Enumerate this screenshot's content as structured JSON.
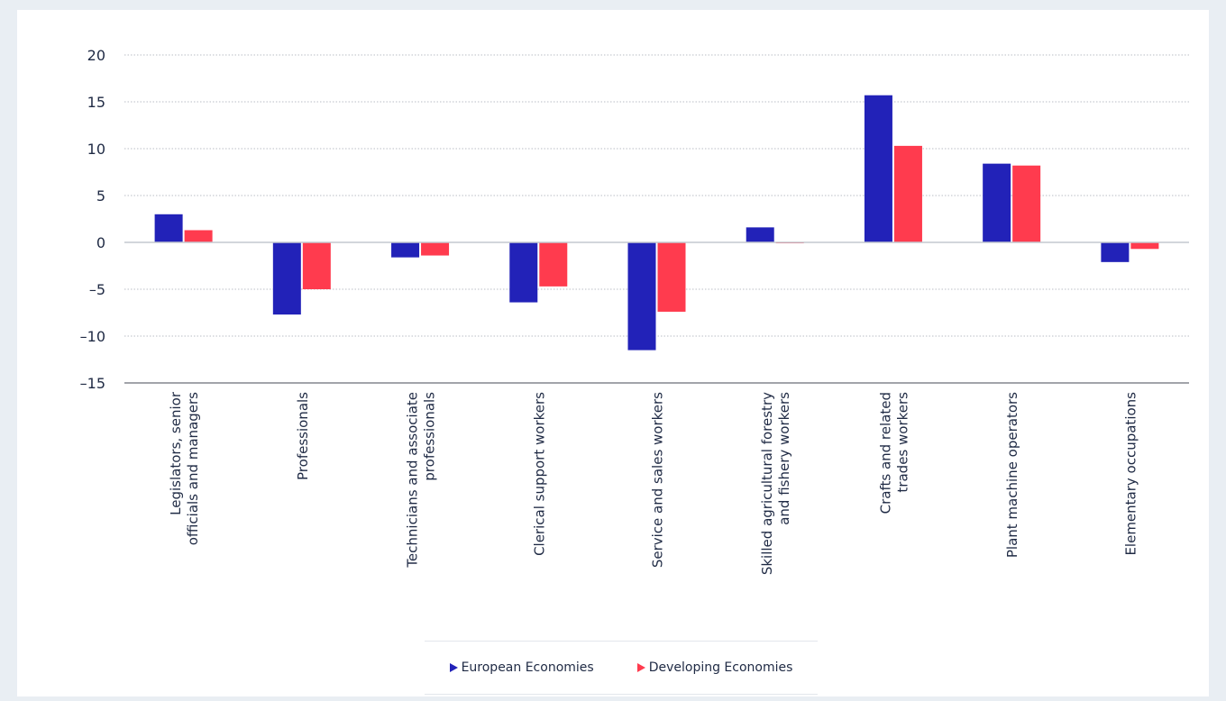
{
  "chart_data": {
    "type": "bar",
    "categories": [
      [
        "Legislators, senior",
        "officials and managers"
      ],
      [
        "Professionals"
      ],
      [
        "Technicians and associate",
        "professionals"
      ],
      [
        "Clerical support workers"
      ],
      [
        "Service and sales workers"
      ],
      [
        "Skilled agricultural forestry",
        "and fishery workers"
      ],
      [
        "Crafts and related",
        "trades workers"
      ],
      [
        "Plant machine operators"
      ],
      [
        "Elementary occupations"
      ]
    ],
    "series": [
      {
        "name": "European Economies",
        "color": "#2222b8",
        "values": [
          3.0,
          -7.7,
          -1.6,
          -6.4,
          -11.5,
          1.6,
          15.7,
          8.4,
          -2.1
        ]
      },
      {
        "name": "Developing Economies",
        "color": "#ff3b4e",
        "values": [
          1.3,
          -5.0,
          -1.4,
          -4.7,
          -7.4,
          -0.1,
          10.3,
          8.2,
          -0.7
        ]
      }
    ],
    "yticks": [
      20,
      15,
      10,
      5,
      0,
      -5,
      -10,
      -15
    ],
    "ytick_labels": [
      "20",
      "15",
      "10",
      "5",
      "0",
      "–5",
      "–10",
      "–15"
    ],
    "ylim": [
      -15,
      20
    ],
    "grid": true,
    "legend_position": "bottom"
  }
}
